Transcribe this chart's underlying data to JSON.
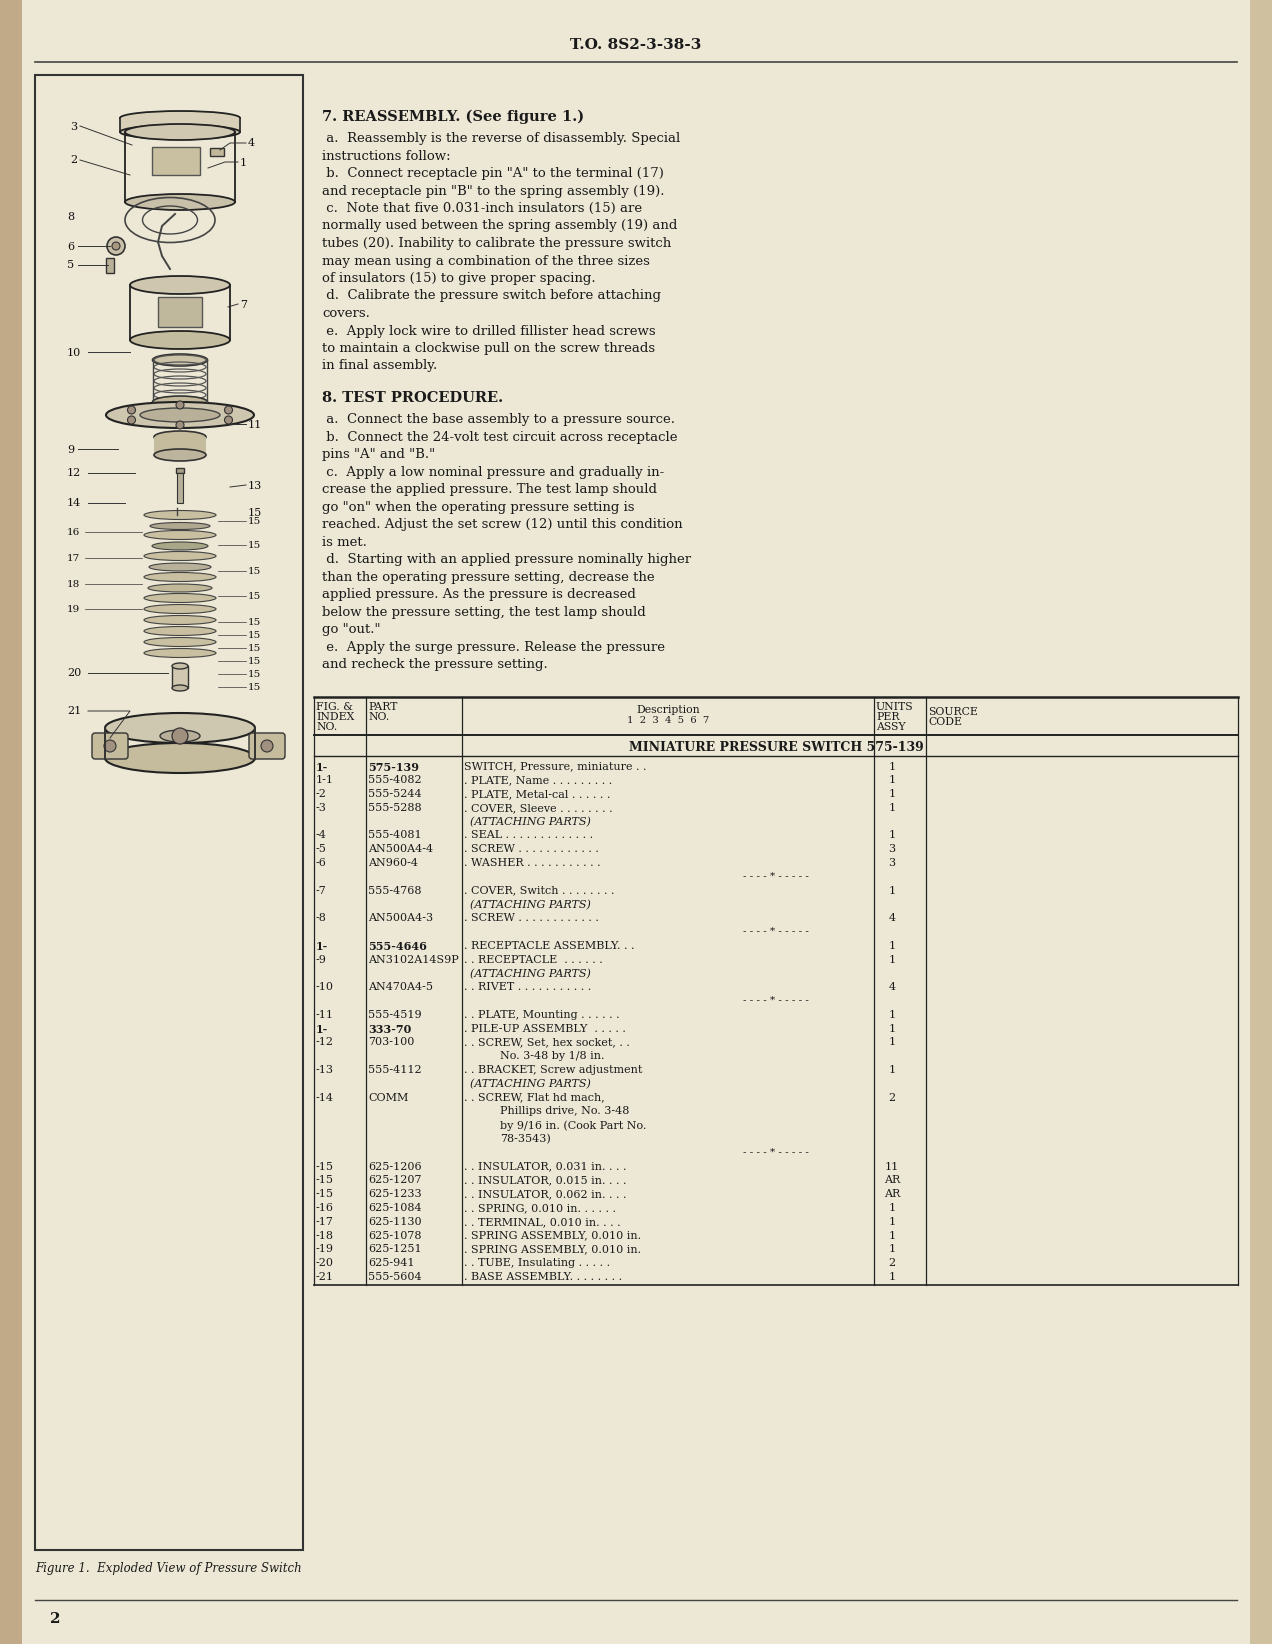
{
  "bg_color": "#ede8d5",
  "text_color": "#1a1a1a",
  "header_text": "T.O. 8S2-3-38-3",
  "page_number": "2",
  "figure_caption": "Figure 1.  Exploded View of Pressure Switch",
  "section7_title": "7. REASSEMBLY. (See figure 1.)",
  "section8_title": "8. TEST PROCEDURE.",
  "sec7_lines": [
    " a.  Reassembly is the reverse of disassembly. Special",
    "instructions follow:",
    " b.  Connect receptacle pin \"A\" to the terminal (17)",
    "and receptacle pin \"B\" to the spring assembly (19).",
    " c.  Note that five 0.031-inch insulators (15) are",
    "normally used between the spring assembly (19) and",
    "tubes (20). Inability to calibrate the pressure switch",
    "may mean using a combination of the three sizes",
    "of insulators (15) to give proper spacing.",
    " d.  Calibrate the pressure switch before attaching",
    "covers.",
    " e.  Apply lock wire to drilled fillister head screws",
    "to maintain a clockwise pull on the screw threads",
    "in final assembly."
  ],
  "sec8_lines": [
    " a.  Connect the base assembly to a pressure source.",
    " b.  Connect the 24-volt test circuit across receptacle",
    "pins \"A\" and \"B.\"",
    " c.  Apply a low nominal pressure and gradually in-",
    "crease the applied pressure. The test lamp should",
    "go \"on\" when the operating pressure setting is",
    "reached. Adjust the set screw (12) until this condition",
    "is met.",
    " d.  Starting with an applied pressure nominally higher",
    "than the operating pressure setting, decrease the",
    "applied pressure. As the pressure is decreased",
    "below the pressure setting, the test lamp should",
    "go \"out.\"",
    " e.  Apply the surge pressure. Release the pressure",
    "and recheck the pressure setting."
  ],
  "table_title": "MINIATURE PRESSURE SWITCH 575-139",
  "table_rows": [
    [
      "1-",
      "575-139",
      "SWITCH, Pressure, miniature . .",
      "1",
      ""
    ],
    [
      "1-1",
      "555-4082",
      ". PLATE, Name . . . . . . . . .",
      "1",
      ""
    ],
    [
      "-2",
      "555-5244",
      ". PLATE, Metal-cal . . . . . .",
      "1",
      ""
    ],
    [
      "-3",
      "555-5288",
      ". COVER, Sleeve . . . . . . . .",
      "1",
      ""
    ],
    [
      "",
      "",
      "(ATTACHING PARTS)",
      "",
      ""
    ],
    [
      "-4",
      "555-4081",
      ". SEAL . . . . . . . . . . . . .",
      "1",
      ""
    ],
    [
      "-5",
      "AN500A4-4",
      ". SCREW . . . . . . . . . . . .",
      "3",
      ""
    ],
    [
      "-6",
      "AN960-4",
      ". WASHER . . . . . . . . . . .",
      "3",
      ""
    ],
    [
      "",
      "",
      "- - - - * - - - - -",
      "",
      ""
    ],
    [
      "-7",
      "555-4768",
      ". COVER, Switch . . . . . . . .",
      "1",
      ""
    ],
    [
      "",
      "",
      "(ATTACHING PARTS)",
      "",
      ""
    ],
    [
      "-8",
      "AN500A4-3",
      ". SCREW . . . . . . . . . . . .",
      "4",
      ""
    ],
    [
      "",
      "",
      "- - - - * - - - - -",
      "",
      ""
    ],
    [
      "1-",
      "555-4646",
      ". RECEPTACLE ASSEMBLY. . .",
      "1",
      ""
    ],
    [
      "-9",
      "AN3102A14S9P",
      ". . RECEPTACLE  . . . . . .",
      "1",
      ""
    ],
    [
      "",
      "",
      "(ATTACHING PARTS)",
      "",
      ""
    ],
    [
      "-10",
      "AN470A4-5",
      ". . RIVET . . . . . . . . . . .",
      "4",
      ""
    ],
    [
      "",
      "",
      "- - - - * - - - - -",
      "",
      ""
    ],
    [
      "-11",
      "555-4519",
      ". . PLATE, Mounting . . . . . .",
      "1",
      ""
    ],
    [
      "1-",
      "333-70",
      ". PILE-UP ASSEMBLY  . . . . .",
      "1",
      ""
    ],
    [
      "-12",
      "703-100",
      ". . SCREW, Set, hex socket, . .",
      "1",
      ""
    ],
    [
      "",
      "",
      "No. 3-48 by 1/8 in.",
      "",
      ""
    ],
    [
      "-13",
      "555-4112",
      ". . BRACKET, Screw adjustment",
      "1",
      ""
    ],
    [
      "",
      "",
      "(ATTACHING PARTS)",
      "",
      ""
    ],
    [
      "-14",
      "COMM",
      ". . SCREW, Flat hd mach,",
      "2",
      ""
    ],
    [
      "",
      "",
      "Phillips drive, No. 3-48",
      "",
      ""
    ],
    [
      "",
      "",
      "by 9/16 in. (Cook Part No.",
      "",
      ""
    ],
    [
      "",
      "",
      "78-3543)",
      "",
      ""
    ],
    [
      "",
      "",
      "- - - - * - - - - -",
      "",
      ""
    ],
    [
      "-15",
      "625-1206",
      ". . INSULATOR, 0.031 in. . . .",
      "11",
      ""
    ],
    [
      "-15",
      "625-1207",
      ". . INSULATOR, 0.015 in. . . .",
      "AR",
      ""
    ],
    [
      "-15",
      "625-1233",
      ". . INSULATOR, 0.062 in. . . .",
      "AR",
      ""
    ],
    [
      "-16",
      "625-1084",
      ". . SPRING, 0.010 in. . . . . .",
      "1",
      ""
    ],
    [
      "-17",
      "625-1130",
      ". . TERMINAL, 0.010 in. . . .",
      "1",
      ""
    ],
    [
      "-18",
      "625-1078",
      ". SPRING ASSEMBLY, 0.010 in.",
      "1",
      ""
    ],
    [
      "-19",
      "625-1251",
      ". SPRING ASSEMBLY, 0.010 in.",
      "1",
      ""
    ],
    [
      "-20",
      "625-941",
      ". . TUBE, Insulating . . . . .",
      "2",
      ""
    ],
    [
      "-21",
      "555-5604",
      ". BASE ASSEMBLY. . . . . . . .",
      "1",
      ""
    ]
  ]
}
